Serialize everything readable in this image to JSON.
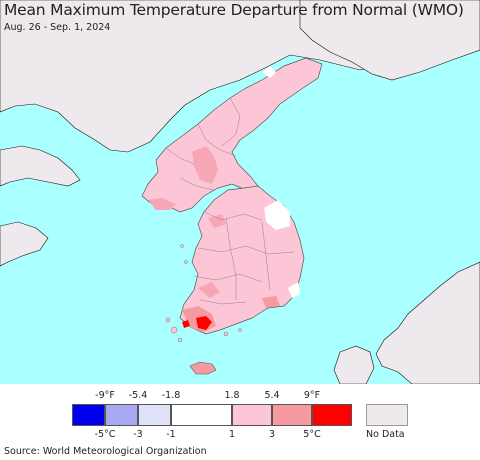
{
  "title": "Mean Maximum Temperature Departure from Normal (WMO)",
  "subtitle": "Aug. 26 - Sep. 1, 2024",
  "colors": {
    "ocean": "#aaffff",
    "no_data_land": "#ede9ec",
    "pink_light": "#fcc6d6",
    "pink_medium": "#f6a6b4",
    "orange_red": "#f59090",
    "red": "#ff0000",
    "white": "#ffffff"
  },
  "legend": {
    "fahrenheit_ticks": [
      "-9°F",
      "-5.4",
      "-1.8",
      "1.8",
      "5.4",
      "9°F"
    ],
    "celsius_ticks": [
      "-5°C",
      "-3",
      "-1",
      "1",
      "3",
      "5°C"
    ],
    "bins": [
      {
        "color": "#0000ee"
      },
      {
        "color": "#a8a8f3"
      },
      {
        "color": "#e0e2f9"
      },
      {
        "color": "#ffffff"
      },
      {
        "color": "#fcc6d6"
      },
      {
        "color": "#f59a9e"
      },
      {
        "color": "#ff0000"
      }
    ],
    "no_data_label": "No Data",
    "no_data_color": "#ede9ec"
  },
  "source": "Source: World Meteorological Organization"
}
